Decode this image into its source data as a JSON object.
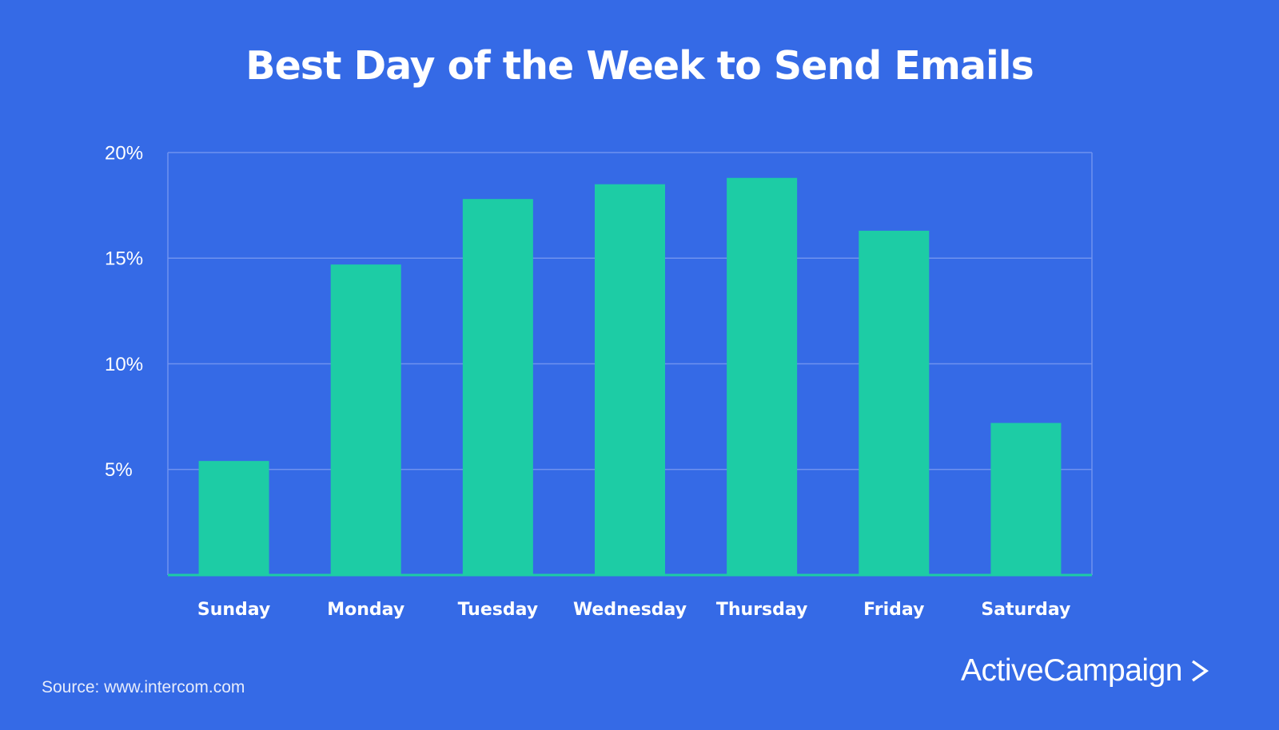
{
  "chart_data": {
    "type": "bar",
    "title": "Best Day of the Week to Send Emails",
    "categories": [
      "Sunday",
      "Monday",
      "Tuesday",
      "Wednesday",
      "Thursday",
      "Friday",
      "Saturday"
    ],
    "values": [
      5.4,
      14.7,
      17.8,
      18.5,
      18.8,
      16.3,
      7.2
    ],
    "value_unit": "%",
    "ylim": [
      0,
      20
    ],
    "yticks": [
      {
        "value": 5,
        "label": "5%"
      },
      {
        "value": 10,
        "label": "10%"
      },
      {
        "value": 15,
        "label": "15%"
      },
      {
        "value": 20,
        "label": "20%"
      }
    ],
    "xlabel": "",
    "ylabel": "",
    "grid": true,
    "legend": "none",
    "colors": {
      "background": "#356ae6",
      "bar": "#1dcca5",
      "gridline": "#6f92ef",
      "axis": "#1dcca5",
      "text": "#ffffff"
    }
  },
  "footer": {
    "source": "Source: www.intercom.com",
    "brand": "ActiveCampaign",
    "brand_icon": "chevron-right-icon"
  }
}
